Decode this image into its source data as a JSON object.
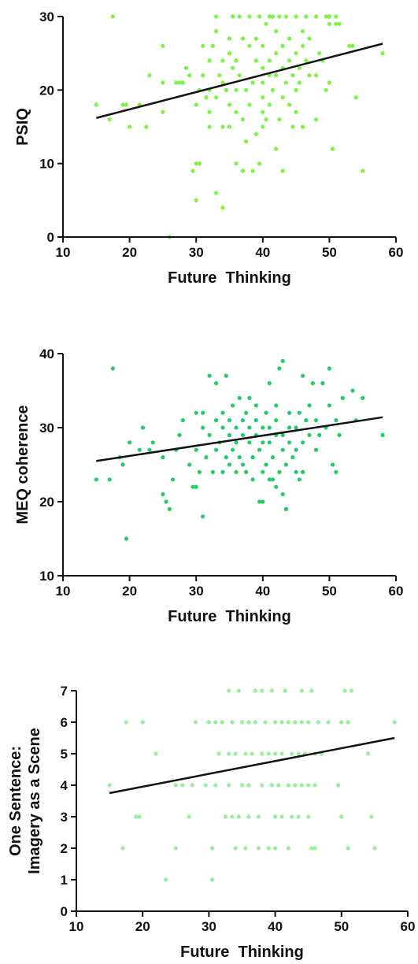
{
  "chart_data": [
    {
      "type": "scatter",
      "xlabel": "Future  Thinking",
      "ylabel": "PSIQ",
      "xlim": [
        10,
        60
      ],
      "ylim": [
        0,
        30
      ],
      "xticks": [
        10,
        20,
        30,
        40,
        50,
        60
      ],
      "yticks": [
        0,
        10,
        20,
        30
      ],
      "grid": false,
      "point_color": "#7CF542",
      "trend": {
        "x": [
          15,
          58
        ],
        "y": [
          16.2,
          26.3
        ]
      },
      "points": [
        [
          15,
          18
        ],
        [
          17,
          16
        ],
        [
          17.5,
          30
        ],
        [
          19,
          18
        ],
        [
          19.5,
          18
        ],
        [
          20,
          15
        ],
        [
          21.5,
          18
        ],
        [
          22.5,
          15
        ],
        [
          23,
          22
        ],
        [
          25,
          17
        ],
        [
          25,
          21
        ],
        [
          25,
          26
        ],
        [
          26,
          0
        ],
        [
          27,
          21
        ],
        [
          27.5,
          21
        ],
        [
          28,
          21
        ],
        [
          28.5,
          23
        ],
        [
          29,
          22
        ],
        [
          29.5,
          9
        ],
        [
          30,
          5
        ],
        [
          30,
          10
        ],
        [
          30.5,
          10
        ],
        [
          30,
          18
        ],
        [
          30.5,
          20
        ],
        [
          31,
          22
        ],
        [
          31,
          26
        ],
        [
          31.5,
          19
        ],
        [
          32,
          15
        ],
        [
          32,
          17
        ],
        [
          32,
          20
        ],
        [
          32,
          24
        ],
        [
          32.5,
          26
        ],
        [
          33,
          28
        ],
        [
          33,
          30
        ],
        [
          33,
          6
        ],
        [
          33,
          19
        ],
        [
          33.5,
          22
        ],
        [
          34,
          4
        ],
        [
          34,
          15
        ],
        [
          34,
          24
        ],
        [
          34,
          21
        ],
        [
          34.5,
          20
        ],
        [
          35,
          15
        ],
        [
          35,
          18
        ],
        [
          35,
          25
        ],
        [
          35,
          27
        ],
        [
          35.5,
          30
        ],
        [
          35.5,
          23
        ],
        [
          36,
          20
        ],
        [
          36,
          10
        ],
        [
          36,
          17
        ],
        [
          36,
          24
        ],
        [
          36.5,
          30
        ],
        [
          36.5,
          22
        ],
        [
          37,
          27
        ],
        [
          37,
          16
        ],
        [
          37,
          9
        ],
        [
          37.5,
          13
        ],
        [
          37.5,
          20
        ],
        [
          38,
          30
        ],
        [
          38,
          18
        ],
        [
          38,
          26
        ],
        [
          38.5,
          21
        ],
        [
          38.5,
          9
        ],
        [
          39,
          14
        ],
        [
          39,
          24
        ],
        [
          39,
          27
        ],
        [
          39.5,
          30
        ],
        [
          39.5,
          10
        ],
        [
          40,
          15
        ],
        [
          40,
          17
        ],
        [
          40,
          19
        ],
        [
          40,
          21
        ],
        [
          40,
          23
        ],
        [
          40,
          26
        ],
        [
          40.5,
          29
        ],
        [
          40.5,
          16
        ],
        [
          41,
          24
        ],
        [
          41,
          30
        ],
        [
          41,
          18
        ],
        [
          41,
          22
        ],
        [
          41.5,
          20
        ],
        [
          41.5,
          30
        ],
        [
          42,
          12
        ],
        [
          42,
          22
        ],
        [
          42,
          25
        ],
        [
          42,
          28
        ],
        [
          42.5,
          30
        ],
        [
          42.5,
          16
        ],
        [
          43,
          19
        ],
        [
          43,
          23
        ],
        [
          43,
          9
        ],
        [
          43,
          26
        ],
        [
          43.5,
          30
        ],
        [
          43.5,
          21
        ],
        [
          44,
          18
        ],
        [
          44,
          24
        ],
        [
          44,
          27
        ],
        [
          44.5,
          22
        ],
        [
          44.5,
          15
        ],
        [
          45,
          20
        ],
        [
          45,
          25
        ],
        [
          45,
          30
        ],
        [
          45,
          17
        ],
        [
          45.5,
          21
        ],
        [
          45.5,
          23
        ],
        [
          46,
          26
        ],
        [
          46,
          15
        ],
        [
          46,
          28
        ],
        [
          46.5,
          24
        ],
        [
          46.5,
          30
        ],
        [
          47,
          22
        ],
        [
          47,
          27
        ],
        [
          48,
          16
        ],
        [
          48,
          22
        ],
        [
          48,
          30
        ],
        [
          48.5,
          25
        ],
        [
          49,
          24
        ],
        [
          49.5,
          20
        ],
        [
          49.5,
          30
        ],
        [
          50,
          21
        ],
        [
          50,
          29
        ],
        [
          50,
          30
        ],
        [
          50.5,
          12
        ],
        [
          51,
          30
        ],
        [
          51,
          29
        ],
        [
          51.5,
          29
        ],
        [
          53,
          26
        ],
        [
          53.5,
          26
        ],
        [
          54,
          19
        ],
        [
          55,
          9
        ],
        [
          58,
          25
        ]
      ]
    },
    {
      "type": "scatter",
      "xlabel": "Future  Thinking",
      "ylabel": "MEQ coherence",
      "xlim": [
        10,
        60
      ],
      "ylim": [
        10,
        40
      ],
      "xticks": [
        10,
        20,
        30,
        40,
        50,
        60
      ],
      "yticks": [
        10,
        20,
        30,
        40
      ],
      "grid": false,
      "point_color": "#22CC66",
      "trend": {
        "x": [
          15,
          58
        ],
        "y": [
          25.5,
          31.4
        ]
      },
      "points": [
        [
          15,
          23
        ],
        [
          17,
          23
        ],
        [
          17.5,
          38
        ],
        [
          18.5,
          26
        ],
        [
          19,
          25
        ],
        [
          19.5,
          15
        ],
        [
          20,
          28
        ],
        [
          21.5,
          27
        ],
        [
          22,
          30
        ],
        [
          23,
          27
        ],
        [
          23.5,
          28
        ],
        [
          25,
          21
        ],
        [
          25,
          26
        ],
        [
          25.5,
          20
        ],
        [
          26,
          19
        ],
        [
          26.5,
          23
        ],
        [
          27,
          27
        ],
        [
          27.5,
          29
        ],
        [
          28,
          31
        ],
        [
          29,
          25
        ],
        [
          29.5,
          22
        ],
        [
          30,
          22
        ],
        [
          30,
          27
        ],
        [
          30,
          32
        ],
        [
          30.5,
          24
        ],
        [
          31,
          18
        ],
        [
          31,
          32
        ],
        [
          31,
          30
        ],
        [
          31.5,
          26
        ],
        [
          32,
          29
        ],
        [
          32,
          37
        ],
        [
          32.5,
          24
        ],
        [
          33,
          27
        ],
        [
          33,
          31
        ],
        [
          33,
          36
        ],
        [
          33.5,
          28
        ],
        [
          34,
          24
        ],
        [
          34,
          30
        ],
        [
          34,
          32
        ],
        [
          34.5,
          26
        ],
        [
          34.5,
          37
        ],
        [
          35,
          25
        ],
        [
          35,
          29
        ],
        [
          35,
          31
        ],
        [
          35.5,
          33
        ],
        [
          35.5,
          27
        ],
        [
          36,
          24
        ],
        [
          36,
          30
        ],
        [
          36,
          28
        ],
        [
          36.5,
          34
        ],
        [
          36.5,
          26
        ],
        [
          37,
          31
        ],
        [
          37,
          25
        ],
        [
          37,
          29
        ],
        [
          37.5,
          32
        ],
        [
          37.5,
          24
        ],
        [
          38,
          28
        ],
        [
          38,
          30
        ],
        [
          38,
          34
        ],
        [
          38.5,
          23
        ],
        [
          38.5,
          26
        ],
        [
          39,
          29
        ],
        [
          39,
          31
        ],
        [
          39,
          33
        ],
        [
          39.5,
          20
        ],
        [
          39.5,
          27
        ],
        [
          40,
          20
        ],
        [
          40,
          24
        ],
        [
          40,
          28
        ],
        [
          40,
          30
        ],
        [
          40.5,
          25
        ],
        [
          40.5,
          32
        ],
        [
          41,
          23
        ],
        [
          41,
          28
        ],
        [
          41,
          30
        ],
        [
          41,
          36
        ],
        [
          41.5,
          23
        ],
        [
          41.5,
          26
        ],
        [
          42,
          22
        ],
        [
          42,
          29
        ],
        [
          42,
          31
        ],
        [
          42,
          33
        ],
        [
          42.5,
          38
        ],
        [
          42.5,
          24
        ],
        [
          43,
          21
        ],
        [
          43,
          27
        ],
        [
          43,
          29
        ],
        [
          43,
          39
        ],
        [
          43.5,
          19
        ],
        [
          43.5,
          25
        ],
        [
          44,
          28
        ],
        [
          44,
          30
        ],
        [
          44,
          32
        ],
        [
          44.5,
          26
        ],
        [
          45,
          24
        ],
        [
          45,
          27
        ],
        [
          45,
          30
        ],
        [
          45.5,
          23
        ],
        [
          45.5,
          32
        ],
        [
          46,
          24
        ],
        [
          46,
          28
        ],
        [
          46,
          37
        ],
        [
          46.5,
          31
        ],
        [
          47,
          29
        ],
        [
          47,
          33
        ],
        [
          47.5,
          36
        ],
        [
          48,
          27
        ],
        [
          48,
          31
        ],
        [
          48.5,
          29
        ],
        [
          49,
          36
        ],
        [
          49.5,
          30
        ],
        [
          50,
          38
        ],
        [
          50,
          33
        ],
        [
          50.5,
          25
        ],
        [
          51,
          24
        ],
        [
          51,
          31
        ],
        [
          51.5,
          29
        ],
        [
          52,
          34
        ],
        [
          53.5,
          35
        ],
        [
          54,
          31
        ],
        [
          55,
          34
        ],
        [
          58,
          29
        ]
      ]
    },
    {
      "type": "scatter",
      "xlabel": "Future  Thinking",
      "ylabel": "One Sentence:\nImagery as a Scene",
      "xlim": [
        10,
        60
      ],
      "ylim": [
        0,
        7
      ],
      "xticks": [
        10,
        20,
        30,
        40,
        50,
        60
      ],
      "yticks": [
        0,
        1,
        2,
        3,
        4,
        5,
        6,
        7
      ],
      "grid": false,
      "point_color": "#99F09A",
      "trend": {
        "x": [
          15,
          58
        ],
        "y": [
          3.75,
          5.5
        ]
      },
      "points": [
        [
          15,
          4
        ],
        [
          17,
          2
        ],
        [
          17.5,
          6
        ],
        [
          19,
          3
        ],
        [
          19.5,
          3
        ],
        [
          20,
          6
        ],
        [
          22,
          5
        ],
        [
          23.5,
          1
        ],
        [
          25,
          2
        ],
        [
          25,
          4
        ],
        [
          26,
          4
        ],
        [
          27,
          3
        ],
        [
          27.5,
          4
        ],
        [
          28,
          6
        ],
        [
          29.5,
          4
        ],
        [
          30,
          6
        ],
        [
          30.5,
          1
        ],
        [
          30.5,
          2
        ],
        [
          31,
          4
        ],
        [
          31,
          6
        ],
        [
          31.5,
          5
        ],
        [
          32,
          6
        ],
        [
          32.5,
          3
        ],
        [
          33,
          7
        ],
        [
          33,
          4
        ],
        [
          33,
          5
        ],
        [
          33.5,
          3
        ],
        [
          33.5,
          6
        ],
        [
          34,
          2
        ],
        [
          34,
          5
        ],
        [
          34.5,
          3
        ],
        [
          34.5,
          7
        ],
        [
          35,
          4
        ],
        [
          35,
          6
        ],
        [
          35.5,
          2
        ],
        [
          35.5,
          5
        ],
        [
          36,
          3
        ],
        [
          36,
          6
        ],
        [
          36,
          4
        ],
        [
          36.5,
          5
        ],
        [
          37,
          7
        ],
        [
          37,
          6
        ],
        [
          37.5,
          3
        ],
        [
          37.5,
          2
        ],
        [
          38,
          4
        ],
        [
          38,
          5
        ],
        [
          38,
          7
        ],
        [
          38.5,
          6
        ],
        [
          39,
          2
        ],
        [
          39,
          5
        ],
        [
          39.5,
          4
        ],
        [
          39.5,
          7
        ],
        [
          40,
          3
        ],
        [
          40,
          6
        ],
        [
          40,
          5
        ],
        [
          40,
          2
        ],
        [
          40.5,
          4
        ],
        [
          41,
          3
        ],
        [
          41,
          6
        ],
        [
          41,
          5
        ],
        [
          41.5,
          7
        ],
        [
          42,
          2
        ],
        [
          42,
          4
        ],
        [
          42,
          6
        ],
        [
          42.5,
          3
        ],
        [
          42.5,
          5
        ],
        [
          43,
          4
        ],
        [
          43,
          6
        ],
        [
          43.5,
          3
        ],
        [
          43.5,
          5
        ],
        [
          44,
          4
        ],
        [
          44,
          7
        ],
        [
          44,
          6
        ],
        [
          44.5,
          5
        ],
        [
          45,
          3
        ],
        [
          45,
          4
        ],
        [
          45,
          6
        ],
        [
          45.5,
          7
        ],
        [
          45.5,
          2
        ],
        [
          46,
          4
        ],
        [
          46,
          5
        ],
        [
          46,
          2
        ],
        [
          46.5,
          6
        ],
        [
          47,
          5
        ],
        [
          48,
          6
        ],
        [
          49.5,
          4
        ],
        [
          50,
          3
        ],
        [
          50,
          6
        ],
        [
          50.5,
          7
        ],
        [
          51,
          2
        ],
        [
          51,
          6
        ],
        [
          51.5,
          7
        ],
        [
          54,
          5
        ],
        [
          54.5,
          3
        ],
        [
          55,
          2
        ],
        [
          58,
          6
        ]
      ]
    }
  ]
}
